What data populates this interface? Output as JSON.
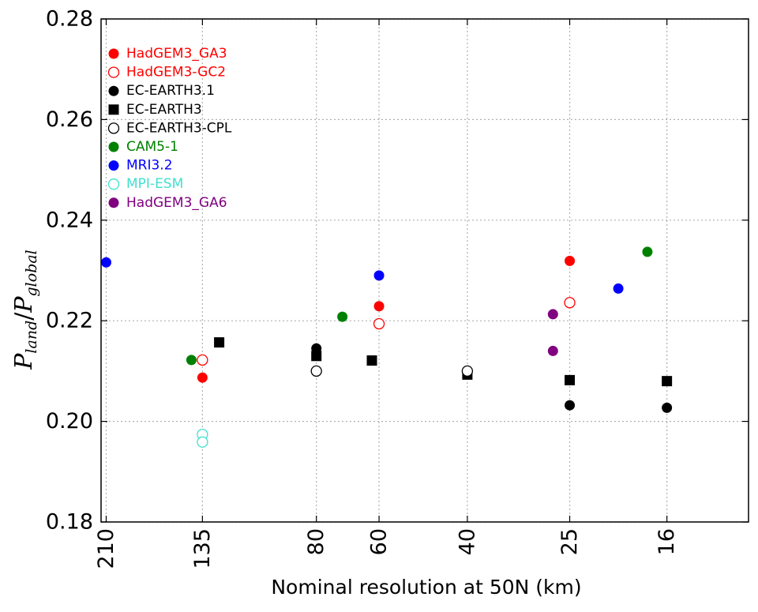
{
  "chart_data": {
    "type": "scatter",
    "title": "",
    "xlabel": "Nominal resolution at 50N (km)",
    "ylabel": {
      "base_left": "P",
      "sub_left": "land",
      "sep": "/",
      "base_right": "P",
      "sub_right": "global"
    },
    "x_scale": "log-reversed",
    "x_ticks": [
      210,
      135,
      80,
      60,
      40,
      25,
      16
    ],
    "x_tick_labels": [
      "210",
      "135",
      "80",
      "60",
      "40",
      "25",
      "16"
    ],
    "xlim": [
      215,
      11
    ],
    "ylim": [
      0.18,
      0.28
    ],
    "y_ticks": [
      0.18,
      0.2,
      0.22,
      0.24,
      0.26,
      0.28
    ],
    "y_tick_labels": [
      "0.18",
      "0.20",
      "0.22",
      "0.24",
      "0.26",
      "0.28"
    ],
    "grid": true,
    "legend_position": "top-left",
    "series": [
      {
        "name": "HadGEM3_GA3",
        "color": "#ff0000",
        "marker": "circle-filled",
        "points": [
          {
            "x": 135,
            "y": 0.2087
          },
          {
            "x": 60,
            "y": 0.2229
          },
          {
            "x": 25,
            "y": 0.2319
          }
        ]
      },
      {
        "name": "HadGEM3-GC2",
        "color": "#ff0000",
        "marker": "circle-open",
        "points": [
          {
            "x": 135,
            "y": 0.2122
          },
          {
            "x": 60,
            "y": 0.2194
          },
          {
            "x": 25,
            "y": 0.2236
          }
        ]
      },
      {
        "name": "EC-EARTH3.1",
        "color": "#000000",
        "marker": "circle-filled",
        "points": [
          {
            "x": 80,
            "y": 0.2145
          },
          {
            "x": 25,
            "y": 0.2032
          },
          {
            "x": 16,
            "y": 0.2027
          }
        ]
      },
      {
        "name": "EC-EARTH3",
        "color": "#000000",
        "marker": "square-filled",
        "points": [
          {
            "x": 125,
            "y": 0.2157
          },
          {
            "x": 80,
            "y": 0.213
          },
          {
            "x": 62,
            "y": 0.2121
          },
          {
            "x": 40,
            "y": 0.2093
          },
          {
            "x": 25,
            "y": 0.2082
          },
          {
            "x": 16,
            "y": 0.208
          }
        ]
      },
      {
        "name": "EC-EARTH3-CPL",
        "color": "#000000",
        "marker": "circle-open",
        "points": [
          {
            "x": 80,
            "y": 0.21
          },
          {
            "x": 40,
            "y": 0.21
          }
        ]
      },
      {
        "name": "CAM5-1",
        "color": "#008000",
        "marker": "circle-filled",
        "points": [
          {
            "x": 142,
            "y": 0.2122
          },
          {
            "x": 71,
            "y": 0.2208
          },
          {
            "x": 17.5,
            "y": 0.2337
          }
        ]
      },
      {
        "name": "MRI3.2",
        "color": "#0000ff",
        "marker": "circle-filled",
        "points": [
          {
            "x": 210,
            "y": 0.2316
          },
          {
            "x": 60,
            "y": 0.229
          },
          {
            "x": 20,
            "y": 0.2264
          }
        ]
      },
      {
        "name": "MPI-ESM",
        "color": "#40e0d0",
        "marker": "circle-open",
        "points": [
          {
            "x": 135,
            "y": 0.1974
          },
          {
            "x": 135,
            "y": 0.1959
          }
        ]
      },
      {
        "name": "HadGEM3_GA6",
        "color": "#800080",
        "marker": "circle-filled",
        "points": [
          {
            "x": 27,
            "y": 0.2213
          },
          {
            "x": 27,
            "y": 0.214
          }
        ]
      }
    ]
  }
}
